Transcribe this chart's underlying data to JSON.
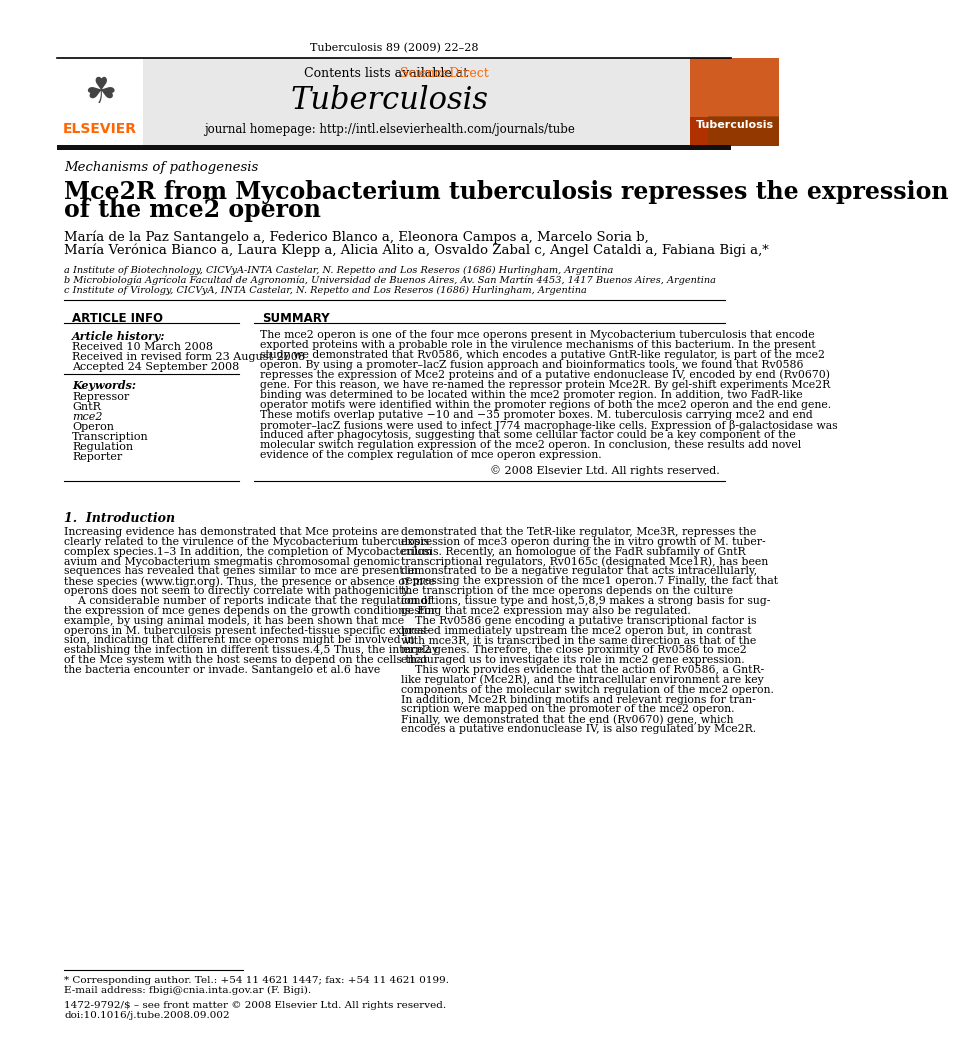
{
  "journal_title": "Tuberculosis",
  "journal_citation": "Tuberculosis 89 (2009) 22–28",
  "contents_line": "Contents lists available at ScienceDirect",
  "journal_homepage": "journal homepage: http://intl.elsevierhealth.com/journals/tube",
  "section_label": "Mechanisms of pathogenesis",
  "title_line1": "Mce2R from Mycobacterium tuberculosis represses the expression",
  "title_line2": "of the mce2 operon",
  "author_line1": "María de la Paz Santangelo a, Federico Blanco a, Eleonora Campos a, Marcelo Soria b,",
  "author_line2": "María Verónica Bianco a, Laura Klepp a, Alicia Alito a, Osvaldo Zabal c, Angel Cataldi a, Fabiana Bigi a,*",
  "affil_a": "a Institute of Biotechnology, CICVyA-INTA Castelar, N. Repetto and Los Reseros (1686) Hurlingham, Argentina",
  "affil_b": "b Microbiología Agrícola Facultad de Agronomía, Universidad de Buenos Aires, Av. San Martín 4453, 1417 Buenos Aires, Argentina",
  "affil_c": "c Institute of Virology, CICVyA, INTA Castelar, N. Repetto and Los Reseros (1686) Hurlingham, Argentina",
  "article_info_title": "ARTICLE INFO",
  "summary_title": "SUMMARY",
  "article_history_label": "Article history:",
  "received": "Received 10 March 2008",
  "received_revised": "Received in revised form 23 August 2008",
  "accepted": "Accepted 24 September 2008",
  "keywords_label": "Keywords:",
  "keywords": [
    "Repressor",
    "GntR",
    "mce2",
    "Operon",
    "Transcription",
    "Regulation",
    "Reporter"
  ],
  "copyright": "© 2008 Elsevier Ltd. All rights reserved.",
  "intro_heading": "1.  Introduction",
  "summary_lines": [
    "The mce2 operon is one of the four mce operons present in Mycobacterium tuberculosis that encode",
    "exported proteins with a probable role in the virulence mechanisms of this bacterium. In the present",
    "study we demonstrated that Rv0586, which encodes a putative GntR-like regulator, is part of the mce2",
    "operon. By using a promoter–lacZ fusion approach and bioinformatics tools, we found that Rv0586",
    "represses the expression of Mce2 proteins and of a putative endonuclease IV, encoded by end (Rv0670)",
    "gene. For this reason, we have re-named the repressor protein Mce2R. By gel-shift experiments Mce2R",
    "binding was determined to be located within the mce2 promoter region. In addition, two FadR-like",
    "operator motifs were identified within the promoter regions of both the mce2 operon and the end gene.",
    "These motifs overlap putative −10 and −35 promoter boxes. M. tuberculosis carrying mce2 and end",
    "promoter–lacZ fusions were used to infect J774 macrophage-like cells. Expression of β-galactosidase was",
    "induced after phagocytosis, suggesting that some cellular factor could be a key component of the",
    "molecular switch regulation expression of the mce2 operon. In conclusion, these results add novel",
    "evidence of the complex regulation of mce operon expression."
  ],
  "intro_col1_lines": [
    "Increasing evidence has demonstrated that Mce proteins are",
    "clearly related to the virulence of the Mycobacterium tuberculosis",
    "complex species.1–3 In addition, the completion of Mycobacterium",
    "avium and Mycobacterium smegmatis chromosomal genomic",
    "sequences has revealed that genes similar to mce are present in",
    "these species (www.tigr.org). Thus, the presence or absence of mce",
    "operons does not seem to directly correlate with pathogenicity.",
    "    A considerable number of reports indicate that the regulation of",
    "the expression of mce genes depends on the growth conditions. For",
    "example, by using animal models, it has been shown that mce",
    "operons in M. tuberculosis present infected-tissue specific expres-",
    "sion, indicating that different mce operons might be involved in",
    "establishing the infection in different tissues.4,5 Thus, the interplay",
    "of the Mce system with the host seems to depend on the cells that",
    "the bacteria encounter or invade. Santangelo et al.6 have"
  ],
  "intro_col2_lines": [
    "demonstrated that the TetR-like regulator, Mce3R, represses the",
    "expression of mce3 operon during the in vitro growth of M. tuber-",
    "culosis. Recently, an homologue of the FadR subfamily of GntR",
    "transcriptional regulators, Rv0165c (designated Mce1R), has been",
    "demonstrated to be a negative regulator that acts intracellularly,",
    "repressing the expression of the mce1 operon.7 Finally, the fact that",
    "the transcription of the mce operons depends on the culture",
    "conditions, tissue type and host,5,8,9 makes a strong basis for sug-",
    "gesting that mce2 expression may also be regulated.",
    "    The Rv0586 gene encoding a putative transcriptional factor is",
    "located immediately upstream the mce2 operon but, in contrast",
    "with mce3R, it is transcribed in the same direction as that of the",
    "mce2 genes. Therefore, the close proximity of Rv0586 to mce2",
    "encouraged us to investigate its role in mce2 gene expression.",
    "    This work provides evidence that the action of Rv0586, a GntR-",
    "like regulator (Mce2R), and the intracellular environment are key",
    "components of the molecular switch regulation of the mce2 operon.",
    "In addition, Mce2R binding motifs and relevant regions for tran-",
    "scription were mapped on the promoter of the mce2 operon.",
    "Finally, we demonstrated that the end (Rv0670) gene, which",
    "encodes a putative endonuclease IV, is also regulated by Mce2R."
  ],
  "footnote_star": "* Corresponding author. Tel.: +54 11 4621 1447; fax: +54 11 4621 0199.",
  "footnote_email": "E-mail address: fbigi@cnia.inta.gov.ar (F. Bigi).",
  "footer_issn": "1472-9792/$ – see front matter © 2008 Elsevier Ltd. All rights reserved.",
  "footer_doi": "doi:10.1016/j.tube.2008.09.002",
  "elsevier_color": "#FF6600",
  "header_bg": "#E8E8E8"
}
